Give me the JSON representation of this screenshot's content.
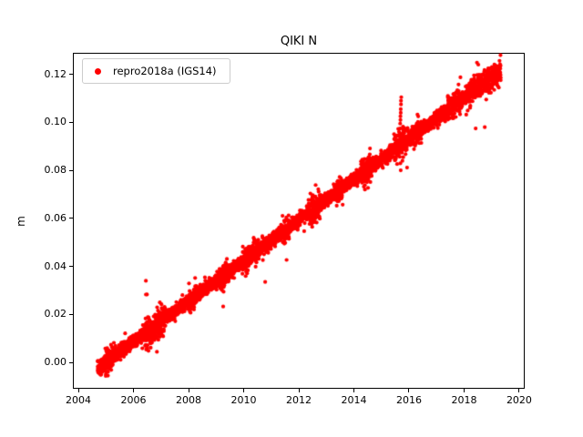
{
  "figure": {
    "title": "QIKI N",
    "background_color": "#ffffff",
    "axes_edge_color": "#000000"
  },
  "legend": {
    "label": "repro2018a (IGS14)",
    "marker_color": "#ff0000",
    "position": "upper left"
  },
  "chart_data": {
    "type": "scatter",
    "title": "QIKI N",
    "xlabel": "",
    "ylabel": "m",
    "grid": false,
    "legend_position": "upper left",
    "xlim": [
      2003.8,
      2020.2
    ],
    "ylim": [
      -0.011,
      0.129
    ],
    "xticks": [
      2004,
      2006,
      2008,
      2010,
      2012,
      2014,
      2016,
      2018,
      2020
    ],
    "xtick_labels": [
      "2004",
      "2006",
      "2008",
      "2010",
      "2012",
      "2014",
      "2016",
      "2018",
      "2020"
    ],
    "yticks": [
      0.0,
      0.02,
      0.04,
      0.06,
      0.08,
      0.1,
      0.12
    ],
    "ytick_labels": [
      "0.00",
      "0.02",
      "0.04",
      "0.06",
      "0.08",
      "0.10",
      "0.12"
    ],
    "series": [
      {
        "name": "repro2018a (IGS14)",
        "color": "#ff0000",
        "marker": "dot",
        "marker_radius_px": 2.1,
        "points_per_year": 365,
        "trend": {
          "x_start": 2004.7,
          "x_end": 2019.33,
          "y_start": -0.0025,
          "y_end": 0.1215,
          "slope_m_per_yr": 0.00848
        },
        "noise_sigma_m": 0.0013,
        "heavy_tail_probability": 0.03,
        "heavy_tail_factor": 2.2,
        "extra_scatter_regions": [
          [
            2004.95,
            2005.3,
            0.0022
          ],
          [
            2006.4,
            2007.15,
            0.003
          ],
          [
            2008.0,
            2008.3,
            0.0022
          ],
          [
            2009.15,
            2009.45,
            0.0024
          ],
          [
            2009.95,
            2010.55,
            0.0026
          ],
          [
            2011.4,
            2011.65,
            0.0024
          ],
          [
            2012.35,
            2012.8,
            0.0028
          ],
          [
            2013.35,
            2013.6,
            0.0024
          ],
          [
            2014.25,
            2014.65,
            0.0026
          ],
          [
            2015.45,
            2015.95,
            0.0028
          ],
          [
            2016.1,
            2016.45,
            0.0024
          ],
          [
            2017.4,
            2017.9,
            0.0024
          ],
          [
            2018.05,
            2019.35,
            0.0024
          ]
        ],
        "outliers": [
          {
            "x": 2006.45,
            "y": 0.034
          },
          {
            "x": 2010.78,
            "y": 0.0335
          },
          {
            "x": 2015.67,
            "y": 0.0955
          },
          {
            "x": 2015.68,
            "y": 0.0975
          },
          {
            "x": 2015.68,
            "y": 0.0995
          },
          {
            "x": 2015.69,
            "y": 0.101
          },
          {
            "x": 2015.69,
            "y": 0.1025
          },
          {
            "x": 2015.7,
            "y": 0.104
          },
          {
            "x": 2015.7,
            "y": 0.1055
          },
          {
            "x": 2015.71,
            "y": 0.1075
          },
          {
            "x": 2015.71,
            "y": 0.109
          },
          {
            "x": 2015.72,
            "y": 0.1105
          },
          {
            "x": 2018.42,
            "y": 0.0975
          },
          {
            "x": 2018.75,
            "y": 0.098
          }
        ]
      }
    ]
  }
}
